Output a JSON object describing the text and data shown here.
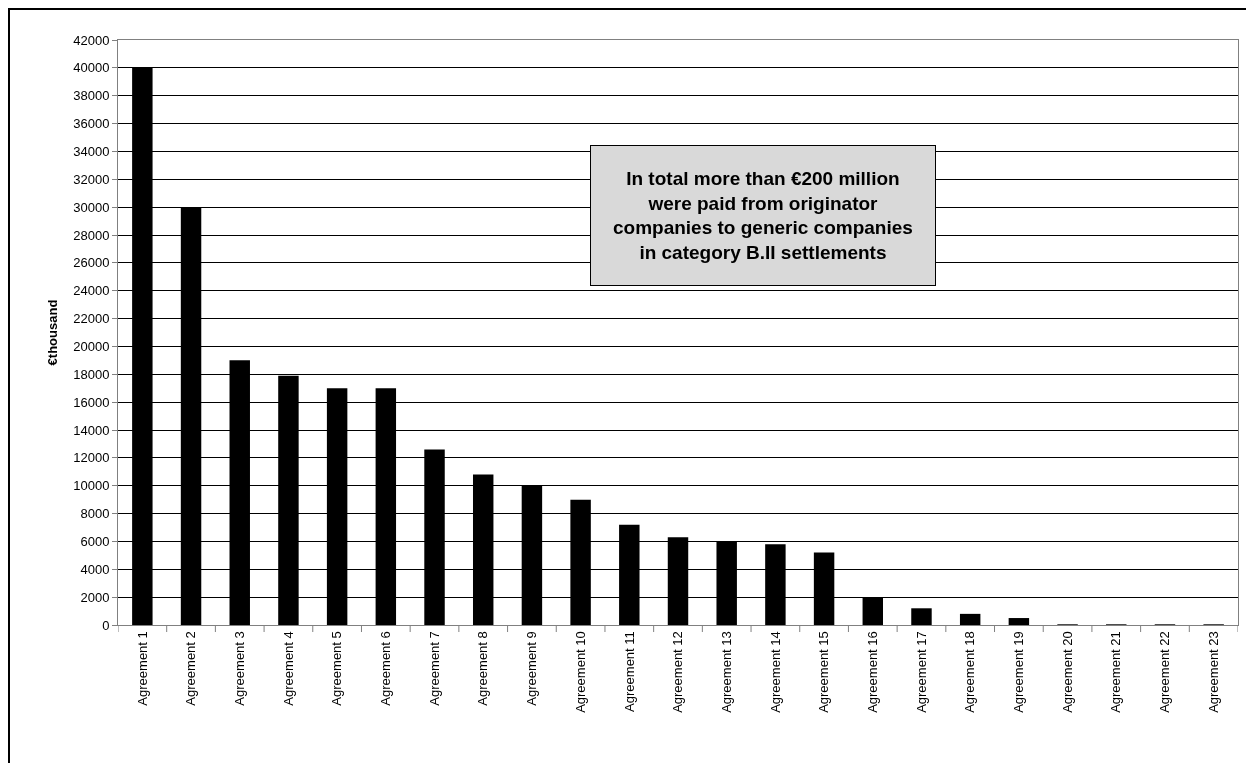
{
  "chart_data": {
    "type": "bar",
    "ylabel": "€thousand",
    "categories": [
      "Agreement 1",
      "Agreement 2",
      "Agreement 3",
      "Agreement 4",
      "Agreement 5",
      "Agreement 6",
      "Agreement 7",
      "Agreement 8",
      "Agreement 9",
      "Agreement 10",
      "Agreement 11",
      "Agreement 12",
      "Agreement 13",
      "Agreement 14",
      "Agreement 15",
      "Agreement 16",
      "Agreement 17",
      "Agreement 18",
      "Agreement 19",
      "Agreement 20",
      "Agreement 21",
      "Agreement 22",
      "Agreement 23"
    ],
    "values": [
      40000,
      30000,
      19000,
      17900,
      17000,
      17000,
      12600,
      10800,
      10000,
      9000,
      7200,
      6300,
      6000,
      5800,
      5200,
      2000,
      1200,
      800,
      500,
      50,
      50,
      50,
      50
    ],
    "color": "#000000",
    "ylim": [
      0,
      42000
    ],
    "yticks": [
      0,
      2000,
      4000,
      6000,
      8000,
      10000,
      12000,
      14000,
      16000,
      18000,
      20000,
      22000,
      24000,
      26000,
      28000,
      30000,
      32000,
      34000,
      36000,
      38000,
      40000,
      42000
    ],
    "grid": "y",
    "legend": false,
    "annotations": [
      "In total more than €200 million were paid from originator companies to generic companies in category B.II settlements"
    ]
  }
}
